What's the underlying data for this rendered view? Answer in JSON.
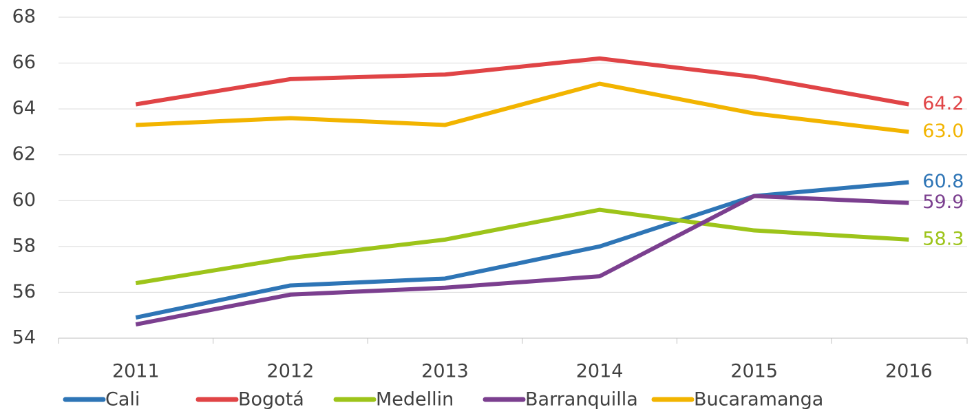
{
  "chart_data": {
    "type": "line",
    "categories": [
      "2011",
      "2012",
      "2013",
      "2014",
      "2015",
      "2016"
    ],
    "series": [
      {
        "name": "Cali",
        "color": "#2e75b6",
        "values": [
          54.9,
          56.3,
          56.6,
          58.0,
          60.2,
          60.8
        ],
        "value_labels": [
          null,
          null,
          null,
          null,
          null,
          "60.8"
        ]
      },
      {
        "name": "Bogotá",
        "color": "#e04446",
        "values": [
          64.2,
          65.3,
          65.5,
          66.2,
          65.4,
          64.2
        ],
        "value_labels": [
          null,
          null,
          null,
          null,
          null,
          "64.2"
        ]
      },
      {
        "name": "Medellin",
        "color": "#9dc41a",
        "values": [
          56.4,
          57.5,
          58.3,
          59.6,
          58.7,
          58.3
        ],
        "value_labels": [
          null,
          null,
          null,
          null,
          null,
          "58.3"
        ]
      },
      {
        "name": "Barranquilla",
        "color": "#7b3f8f",
        "values": [
          54.6,
          55.9,
          56.2,
          56.7,
          60.2,
          59.9
        ],
        "value_labels": [
          null,
          null,
          null,
          null,
          null,
          "59.9"
        ]
      },
      {
        "name": "Bucaramanga",
        "color": "#f2b400",
        "values": [
          63.3,
          63.6,
          63.3,
          65.1,
          63.8,
          63.0
        ],
        "value_labels": [
          null,
          null,
          null,
          null,
          null,
          "63.0"
        ]
      }
    ],
    "ylim": [
      54,
      68
    ],
    "yticks": [
      54,
      56,
      58,
      60,
      62,
      64,
      66,
      68
    ],
    "grid": true,
    "legend": "bottom"
  }
}
